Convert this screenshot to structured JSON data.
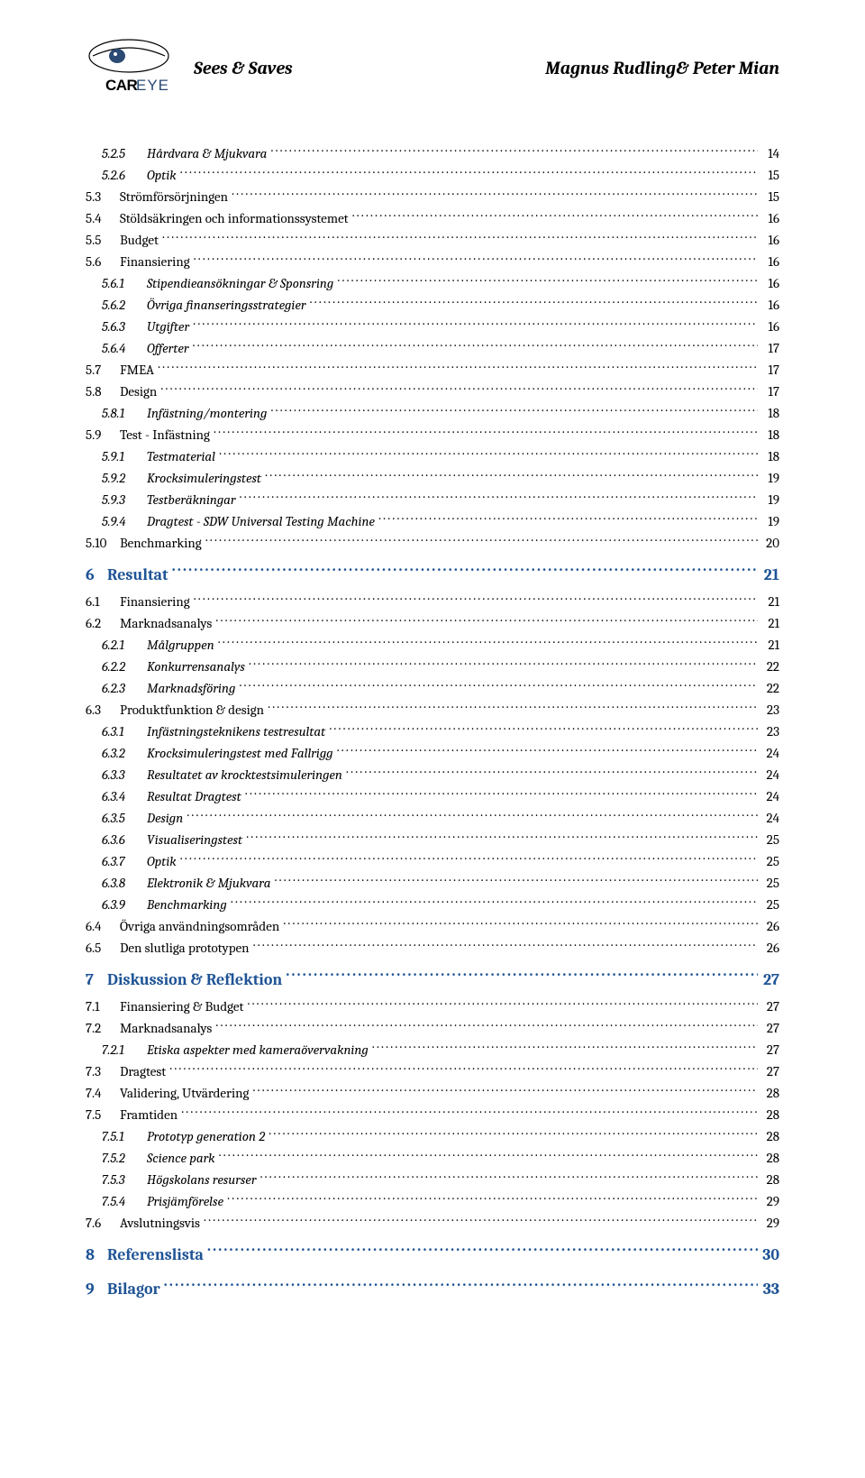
{
  "header": {
    "left_title": "Sees & Saves",
    "right_title": "Magnus Rudling& Peter Mian",
    "logo_text": "CAREYE"
  },
  "colors": {
    "chapter_color": "#1f5496",
    "body_text": "#000000",
    "background": "#ffffff"
  },
  "toc": [
    {
      "level": 3,
      "num": "5.2.5",
      "label": "Hårdvara & Mjukvara",
      "page": "14"
    },
    {
      "level": 3,
      "num": "5.2.6",
      "label": "Optik",
      "page": "15"
    },
    {
      "level": 2,
      "num": "5.3",
      "label": "Strömförsörjningen",
      "page": "15"
    },
    {
      "level": 2,
      "num": "5.4",
      "label": "Stöldsäkringen och informationssystemet",
      "page": "16"
    },
    {
      "level": 2,
      "num": "5.5",
      "label": "Budget",
      "page": "16"
    },
    {
      "level": 2,
      "num": "5.6",
      "label": "Finansiering",
      "page": "16"
    },
    {
      "level": 3,
      "num": "5.6.1",
      "label": "Stipendieansökningar & Sponsring",
      "page": "16"
    },
    {
      "level": 3,
      "num": "5.6.2",
      "label": "Övriga finanseringsstrategier",
      "page": "16"
    },
    {
      "level": 3,
      "num": "5.6.3",
      "label": "Utgifter",
      "page": "16"
    },
    {
      "level": 3,
      "num": "5.6.4",
      "label": "Offerter",
      "page": "17"
    },
    {
      "level": 2,
      "num": "5.7",
      "label": "FMEA",
      "page": "17"
    },
    {
      "level": 2,
      "num": "5.8",
      "label": "Design",
      "page": "17"
    },
    {
      "level": 3,
      "num": "5.8.1",
      "label": "Infästning/montering",
      "page": "18"
    },
    {
      "level": 2,
      "num": "5.9",
      "label": "Test - Infästning",
      "page": "18"
    },
    {
      "level": 3,
      "num": "5.9.1",
      "label": "Testmaterial",
      "page": "18"
    },
    {
      "level": 3,
      "num": "5.9.2",
      "label": "Krocksimuleringstest",
      "page": "19"
    },
    {
      "level": 3,
      "num": "5.9.3",
      "label": "Testberäkningar",
      "page": "19"
    },
    {
      "level": 3,
      "num": "5.9.4",
      "label": "Dragtest - SDW Universal Testing Machine",
      "page": "19"
    },
    {
      "level": 2,
      "num": "5.10",
      "label": "Benchmarking",
      "page": "20"
    },
    {
      "level": 1,
      "num": "6",
      "label": "Resultat",
      "page": "21"
    },
    {
      "level": 2,
      "num": "6.1",
      "label": "Finansiering",
      "page": "21"
    },
    {
      "level": 2,
      "num": "6.2",
      "label": "Marknadsanalys",
      "page": "21"
    },
    {
      "level": 3,
      "num": "6.2.1",
      "label": "Målgruppen",
      "page": "21"
    },
    {
      "level": 3,
      "num": "6.2.2",
      "label": "Konkurrensanalys",
      "page": "22"
    },
    {
      "level": 3,
      "num": "6.2.3",
      "label": "Marknadsföring",
      "page": "22"
    },
    {
      "level": 2,
      "num": "6.3",
      "label": "Produktfunktion & design",
      "page": "23"
    },
    {
      "level": 3,
      "num": "6.3.1",
      "label": "Infästningsteknikens testresultat",
      "page": "23"
    },
    {
      "level": 3,
      "num": "6.3.2",
      "label": "Krocksimuleringstest med Fallrigg",
      "page": "24"
    },
    {
      "level": 3,
      "num": "6.3.3",
      "label": "Resultatet av krocktestsimuleringen",
      "page": "24"
    },
    {
      "level": 3,
      "num": "6.3.4",
      "label": "Resultat Dragtest",
      "page": "24"
    },
    {
      "level": 3,
      "num": "6.3.5",
      "label": "Design",
      "page": "24"
    },
    {
      "level": 3,
      "num": "6.3.6",
      "label": "Visualiseringstest",
      "page": "25"
    },
    {
      "level": 3,
      "num": "6.3.7",
      "label": "Optik",
      "page": "25"
    },
    {
      "level": 3,
      "num": "6.3.8",
      "label": "Elektronik & Mjukvara",
      "page": "25"
    },
    {
      "level": 3,
      "num": "6.3.9",
      "label": "Benchmarking",
      "page": "25"
    },
    {
      "level": 2,
      "num": "6.4",
      "label": "Övriga användningsområden",
      "page": "26"
    },
    {
      "level": 2,
      "num": "6.5",
      "label": "Den slutliga prototypen",
      "page": "26"
    },
    {
      "level": 1,
      "num": "7",
      "label": "Diskussion & Reflektion",
      "page": "27"
    },
    {
      "level": 2,
      "num": "7.1",
      "label": "Finansiering & Budget",
      "page": "27"
    },
    {
      "level": 2,
      "num": "7.2",
      "label": "Marknadsanalys",
      "page": "27"
    },
    {
      "level": 3,
      "num": "7.2.1",
      "label": "Etiska aspekter med kameraövervakning",
      "page": "27"
    },
    {
      "level": 2,
      "num": "7.3",
      "label": "Dragtest",
      "page": "27"
    },
    {
      "level": 2,
      "num": "7.4",
      "label": "Validering, Utvärdering",
      "page": "28"
    },
    {
      "level": 2,
      "num": "7.5",
      "label": "Framtiden",
      "page": "28"
    },
    {
      "level": 3,
      "num": "7.5.1",
      "label": "Prototyp generation 2",
      "page": "28"
    },
    {
      "level": 3,
      "num": "7.5.2",
      "label": "Science park",
      "page": "28"
    },
    {
      "level": 3,
      "num": "7.5.3",
      "label": "Högskolans resurser",
      "page": "28"
    },
    {
      "level": 3,
      "num": "7.5.4",
      "label": "Prisjämförelse",
      "page": "29"
    },
    {
      "level": 2,
      "num": "7.6",
      "label": "Avslutningsvis",
      "page": "29"
    },
    {
      "level": 1,
      "num": "8",
      "label": "Referenslista",
      "page": "30"
    },
    {
      "level": 1,
      "num": "9",
      "label": "Bilagor",
      "page": "33"
    }
  ]
}
